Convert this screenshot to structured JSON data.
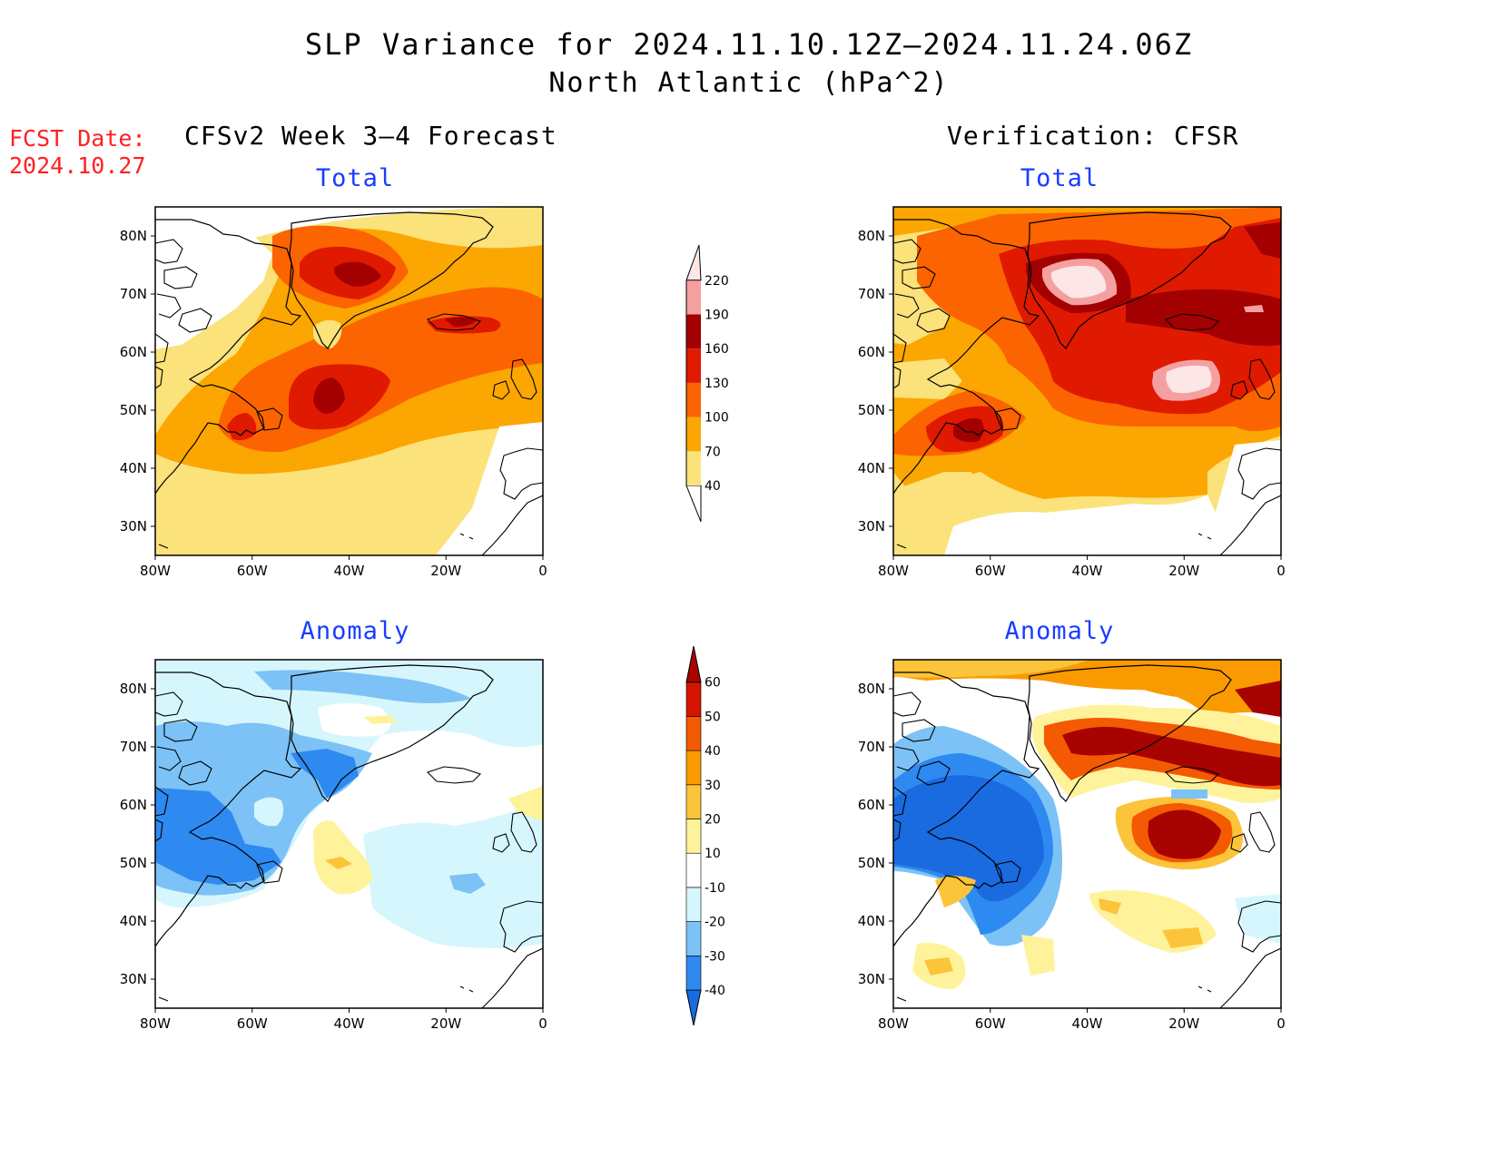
{
  "title": "SLP Variance for 2024.11.10.12Z–2024.11.24.06Z",
  "subtitle": "North Atlantic (hPa^2)",
  "fcst_label": "FCST Date:",
  "fcst_date": "2024.10.27",
  "left_column_title": "CFSv2 Week 3–4 Forecast",
  "right_column_title": "Verification: CFSR",
  "panel_titles": {
    "forecast_total": "Total",
    "forecast_anomaly": "Anomaly",
    "verification_total": "Total",
    "verification_anomaly": "Anomaly"
  },
  "axes": {
    "lon_labels": [
      "80W",
      "60W",
      "40W",
      "20W",
      "0"
    ],
    "lat_labels": [
      "80N",
      "70N",
      "60N",
      "50N",
      "40N",
      "30N"
    ]
  },
  "total_colorbar": {
    "levels": [
      "40",
      "70",
      "100",
      "130",
      "160",
      "190",
      "220"
    ],
    "colors": [
      "#fbe27a",
      "#fba601",
      "#fb6401",
      "#e01901",
      "#a30001",
      "#f5a0a0",
      "#fde6e6"
    ]
  },
  "anomaly_colorbar": {
    "levels": [
      "-40",
      "-30",
      "-20",
      "-10",
      "10",
      "20",
      "30",
      "40",
      "50",
      "60"
    ],
    "colors": [
      "#1a6ae0",
      "#2e8af0",
      "#7cc2f6",
      "#d6f6fd",
      "#ffffff",
      "#fef39a",
      "#fbc43a",
      "#fa9a01",
      "#f45a01",
      "#d41401",
      "#a60301"
    ]
  },
  "chart_data": [
    {
      "type": "heatmap",
      "title": "Total",
      "column": "CFSv2 Week 3–4 Forecast",
      "xlim": [
        -80,
        0
      ],
      "ylim": [
        25,
        85
      ],
      "units": "hPa^2",
      "features": [
        {
          "lon": -38,
          "lat": 73,
          "value": 165
        },
        {
          "lon": -45,
          "lat": 51,
          "value": 165
        },
        {
          "lon": -12,
          "lat": 65,
          "value": 140
        }
      ]
    },
    {
      "type": "heatmap",
      "title": "Total",
      "column": "Verification: CFSR",
      "xlim": [
        -80,
        0
      ],
      "ylim": [
        25,
        85
      ],
      "units": "hPa^2",
      "features": [
        {
          "lon": -42,
          "lat": 72,
          "value": 230
        },
        {
          "lon": -20,
          "lat": 54,
          "value": 220
        },
        {
          "lon": -64,
          "lat": 47,
          "value": 160
        }
      ]
    },
    {
      "type": "heatmap",
      "title": "Anomaly",
      "column": "CFSv2 Week 3–4 Forecast",
      "xlim": [
        -80,
        0
      ],
      "ylim": [
        25,
        85
      ],
      "units": "hPa^2",
      "features": [
        {
          "lon": -72,
          "lat": 55,
          "value": -35
        },
        {
          "lon": -42,
          "lat": 67,
          "value": -32
        },
        {
          "lon": -43,
          "lat": 50,
          "value": 25
        }
      ]
    },
    {
      "type": "heatmap",
      "title": "Anomaly",
      "column": "Verification: CFSR",
      "xlim": [
        -80,
        0
      ],
      "ylim": [
        25,
        85
      ],
      "units": "hPa^2",
      "features": [
        {
          "lon": -62,
          "lat": 57,
          "value": -40
        },
        {
          "lon": -17,
          "lat": 54,
          "value": 65
        },
        {
          "lon": -30,
          "lat": 71,
          "value": 65
        },
        {
          "lon": -2,
          "lat": 78,
          "value": 62
        }
      ]
    }
  ]
}
